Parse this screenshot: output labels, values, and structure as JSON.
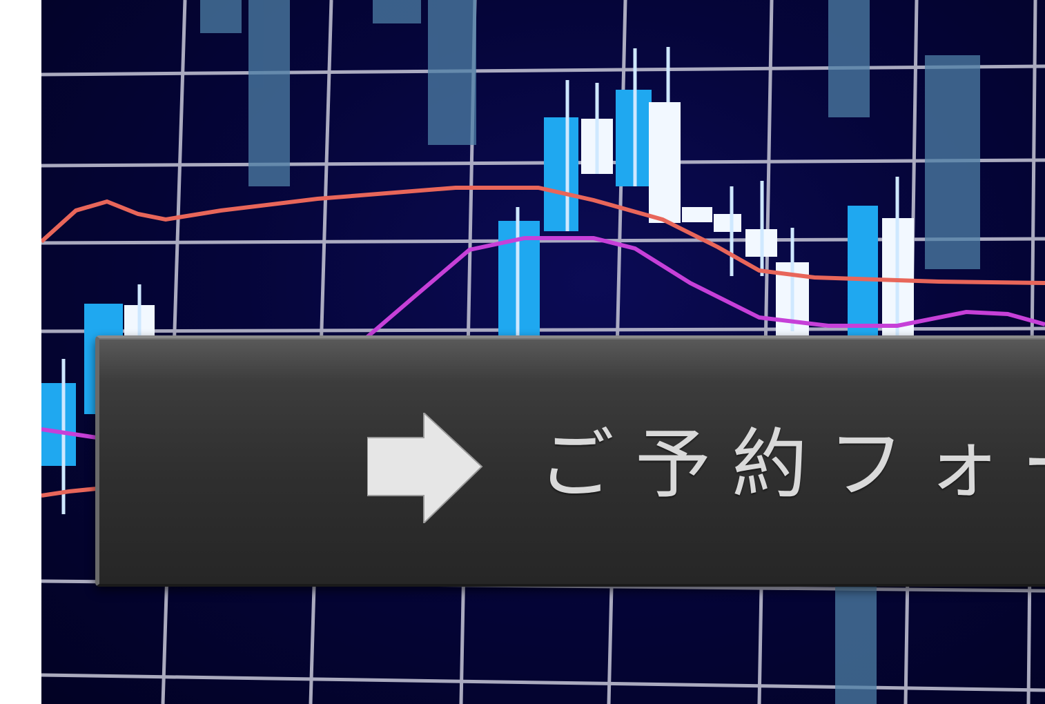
{
  "background": {
    "description_icon": "candlestick-chart-icon",
    "colors": {
      "grid": "#c8c8d8",
      "candle_blue": "#1fa8f0",
      "candle_white": "#f2f8ff",
      "ghost_candle": "#4d7fa6",
      "line_red": "#e8665a",
      "line_magenta": "#c640d8"
    }
  },
  "banner": {
    "label": "ご予約フォーム",
    "icon": "arrow-right-icon",
    "background_color": "#333333",
    "text_color": "#d9d9d9"
  }
}
